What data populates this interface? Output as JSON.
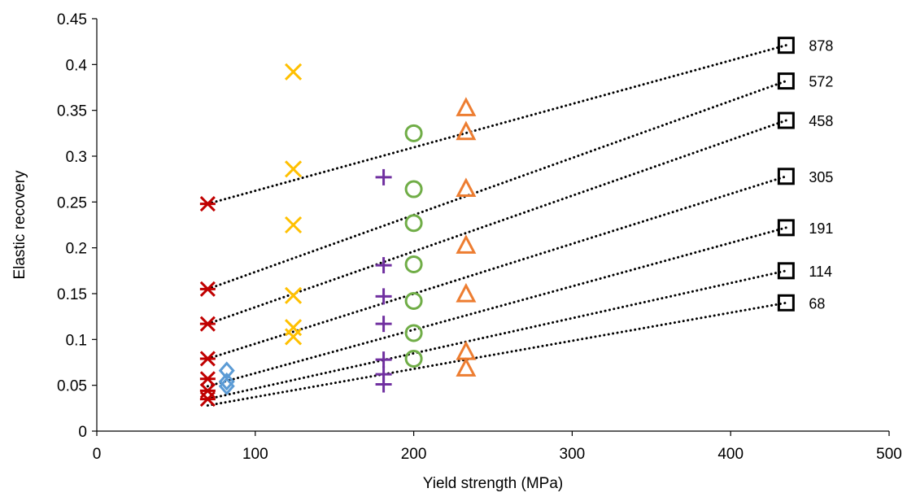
{
  "chart_data": {
    "type": "scatter",
    "title": "",
    "xlabel": "Yield strength (MPa)",
    "ylabel": "Elastic recovery",
    "xlim": [
      0,
      500
    ],
    "ylim": [
      0,
      0.45
    ],
    "x_ticks": [
      0,
      100,
      200,
      300,
      400,
      500
    ],
    "y_ticks": [
      0,
      0.05,
      0.1,
      0.15,
      0.2,
      0.25,
      0.3,
      0.35,
      0.4,
      0.45
    ],
    "x_tick_labels": [
      "0",
      "100",
      "200",
      "300",
      "400",
      "500"
    ],
    "y_tick_labels": [
      "0",
      "0.05",
      "0.1",
      "0.15",
      "0.2",
      "0.25",
      "0.3",
      "0.35",
      "0.4",
      "0.45"
    ],
    "grid": false,
    "legend": "none",
    "series": [
      {
        "marker": "star",
        "color": "#C00000",
        "x": [
          70,
          70,
          70,
          70,
          70,
          70,
          70
        ],
        "y": [
          0.248,
          0.155,
          0.117,
          0.079,
          0.057,
          0.044,
          0.035
        ]
      },
      {
        "marker": "diamond",
        "color": "#5B9BD5",
        "x": [
          82,
          82,
          82
        ],
        "y": [
          0.066,
          0.054,
          0.049
        ]
      },
      {
        "marker": "x",
        "color": "#FFC000",
        "x": [
          124,
          124,
          124,
          124,
          124,
          124
        ],
        "y": [
          0.392,
          0.286,
          0.225,
          0.148,
          0.113,
          0.103
        ]
      },
      {
        "marker": "plus",
        "color": "#7030A0",
        "x": [
          181,
          181,
          181,
          181,
          181,
          181,
          181
        ],
        "y": [
          0.277,
          0.181,
          0.147,
          0.117,
          0.078,
          0.062,
          0.051
        ]
      },
      {
        "marker": "circle",
        "color": "#70AD47",
        "x": [
          200,
          200,
          200,
          200,
          200,
          200,
          200
        ],
        "y": [
          0.325,
          0.264,
          0.227,
          0.182,
          0.142,
          0.107,
          0.079
        ]
      },
      {
        "marker": "triangle",
        "color": "#ED7D31",
        "x": [
          233,
          233,
          233,
          233,
          233,
          233,
          233
        ],
        "y": [
          0.352,
          0.326,
          0.264,
          0.202,
          0.149,
          0.086,
          0.068
        ]
      },
      {
        "marker": "square",
        "color": "#000000",
        "x": [
          435,
          435,
          435,
          435,
          435,
          435,
          435
        ],
        "y": [
          0.421,
          0.382,
          0.339,
          0.278,
          0.222,
          0.175,
          0.14
        ]
      }
    ],
    "trendlines": [
      {
        "label": "878",
        "from": [
          70,
          0.248
        ],
        "to": [
          435,
          0.421
        ]
      },
      {
        "label": "572",
        "from": [
          70,
          0.155
        ],
        "to": [
          435,
          0.382
        ]
      },
      {
        "label": "458",
        "from": [
          70,
          0.117
        ],
        "to": [
          435,
          0.339
        ]
      },
      {
        "label": "305",
        "from": [
          70,
          0.079
        ],
        "to": [
          435,
          0.278
        ]
      },
      {
        "label": "191",
        "from": [
          70,
          0.049
        ],
        "to": [
          435,
          0.222
        ]
      },
      {
        "label": "114",
        "from": [
          70,
          0.035
        ],
        "to": [
          435,
          0.175
        ]
      },
      {
        "label": "68",
        "from": [
          70,
          0.028
        ],
        "to": [
          435,
          0.14
        ]
      }
    ]
  }
}
